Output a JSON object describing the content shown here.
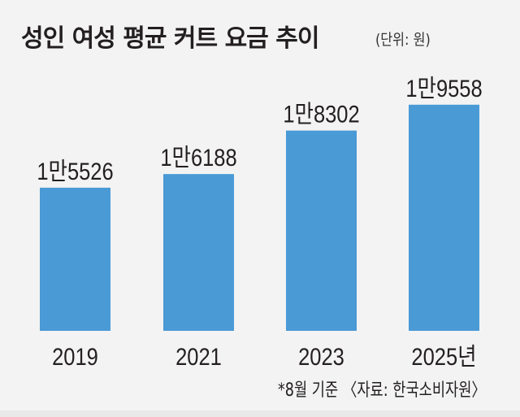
{
  "title": "성인 여성 평균 커트 요금 추이",
  "unit": "(단위: 원)",
  "footnote": "*8월 기준  〈자료: 한국소비자원〉",
  "colors": {
    "bar": "#4a9ad6",
    "background": "#f3f3f3",
    "text": "#231f20"
  },
  "chart_data": {
    "type": "bar",
    "title": "성인 여성 평균 커트 요금 추이",
    "ylabel": "(단위: 원)",
    "xlabel": "",
    "categories": [
      "2019",
      "2021",
      "2023",
      "2025년"
    ],
    "values": [
      15526,
      16188,
      18302,
      19558
    ],
    "data_labels": [
      "1만5526",
      "1만6188",
      "1만8302",
      "1만9558"
    ],
    "ylim": [
      8570,
      20000
    ],
    "grid": false
  }
}
